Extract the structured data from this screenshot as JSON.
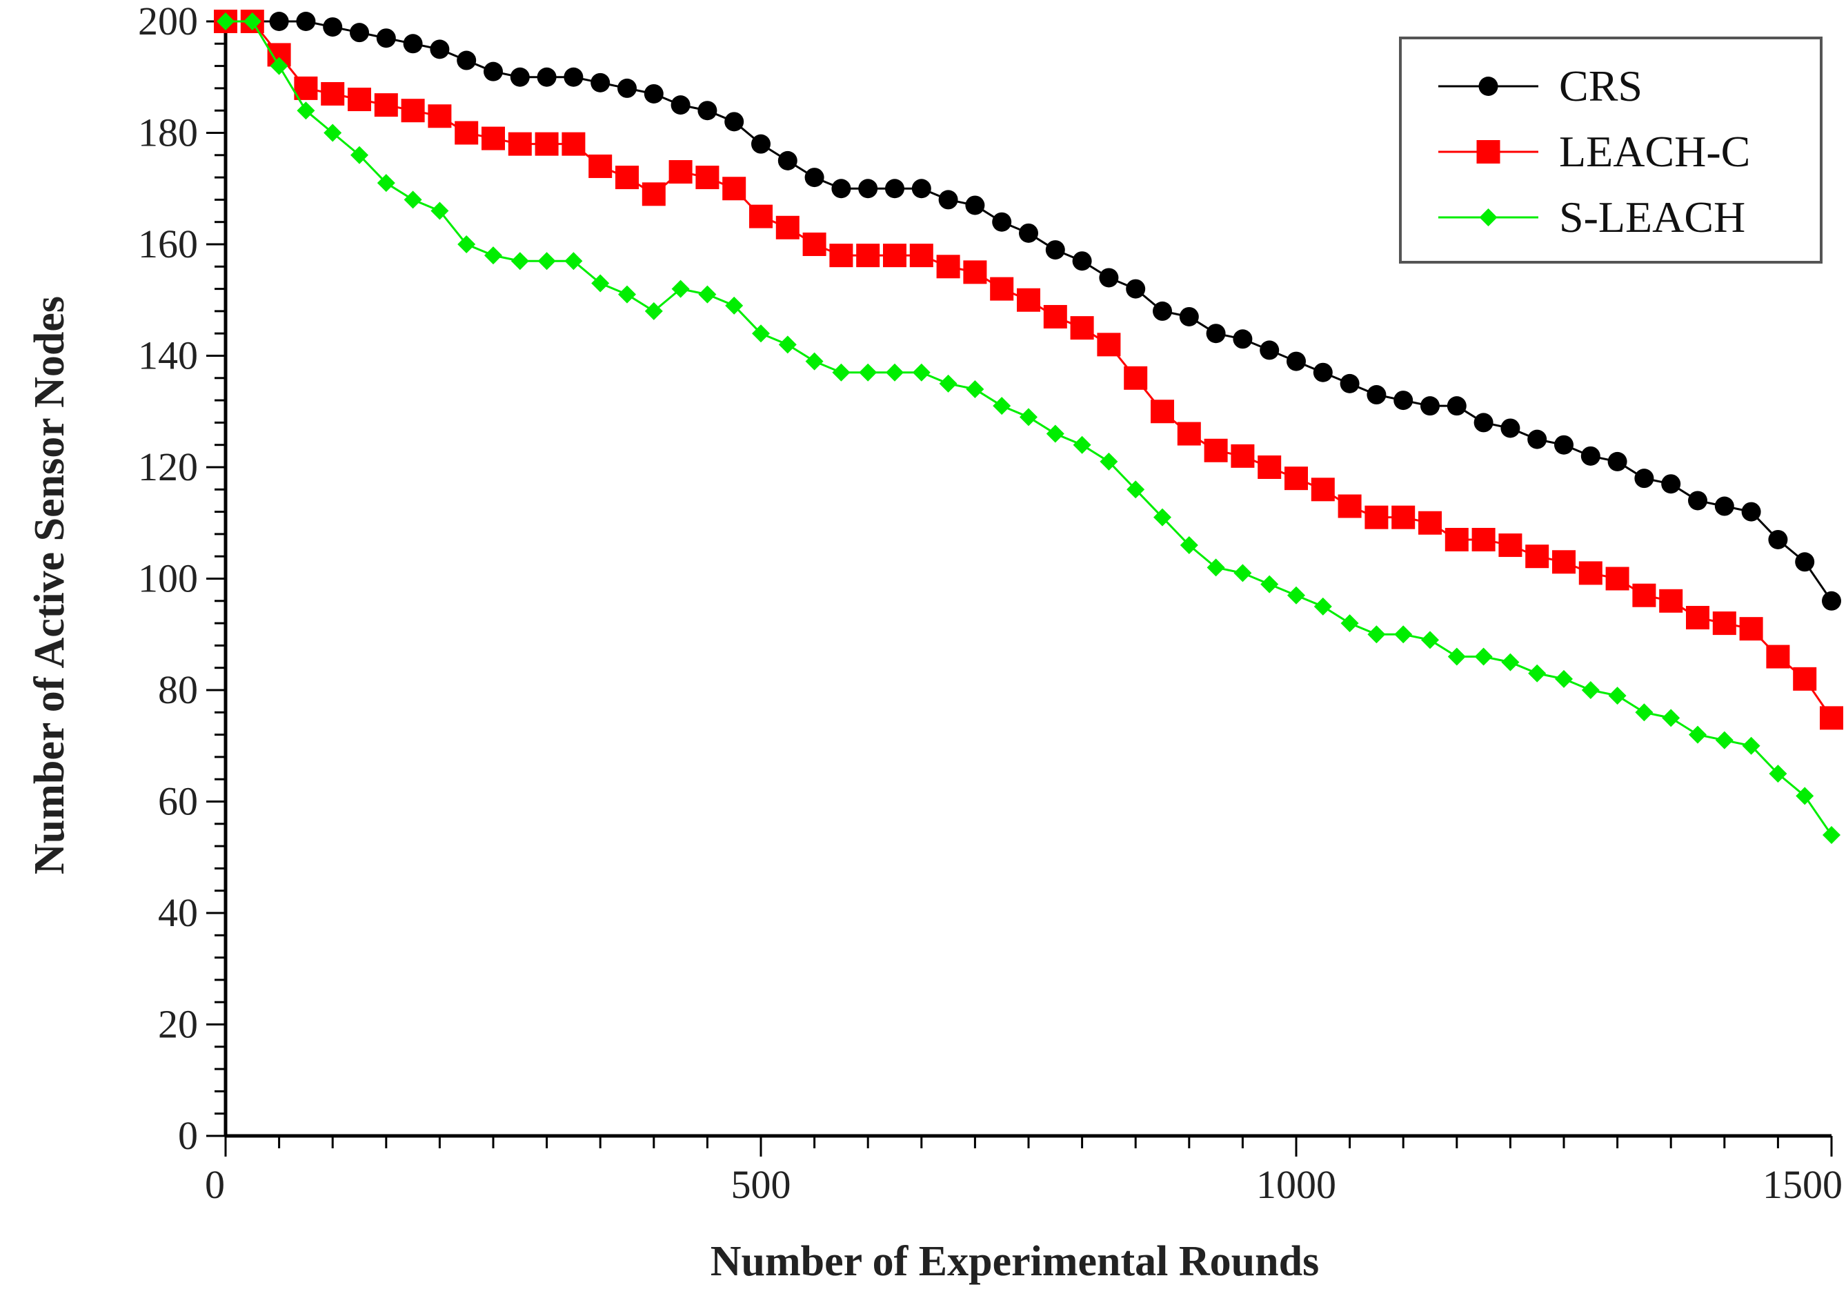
{
  "chart_data": {
    "type": "line",
    "title": "",
    "xlabel": "Number of Experimental Rounds",
    "ylabel": "Number of Active Sensor Nodes",
    "xlim": [
      0,
      1500
    ],
    "ylim": [
      0,
      200
    ],
    "xticks": [
      0,
      500,
      1000,
      1500
    ],
    "yticks": [
      0,
      20,
      40,
      60,
      80,
      100,
      120,
      140,
      160,
      180,
      200
    ],
    "grid": false,
    "legend_position": "top-right",
    "x": [
      0,
      25,
      50,
      75,
      100,
      125,
      150,
      175,
      200,
      225,
      250,
      275,
      300,
      325,
      350,
      375,
      400,
      425,
      450,
      475,
      500,
      525,
      550,
      575,
      600,
      625,
      650,
      675,
      700,
      725,
      750,
      775,
      800,
      825,
      850,
      875,
      900,
      925,
      950,
      975,
      1000,
      1025,
      1050,
      1075,
      1100,
      1125,
      1150,
      1175,
      1200,
      1225,
      1250,
      1275,
      1300,
      1325,
      1350,
      1375,
      1400,
      1425,
      1450,
      1475,
      1500
    ],
    "series": [
      {
        "name": "CRS",
        "color": "#000000",
        "marker": "circle",
        "values": [
          200,
          200,
          200,
          200,
          199,
          198,
          197,
          196,
          195,
          193,
          191,
          190,
          190,
          190,
          189,
          188,
          187,
          185,
          184,
          182,
          178,
          175,
          172,
          170,
          170,
          170,
          170,
          168,
          167,
          164,
          162,
          159,
          157,
          154,
          152,
          148,
          147,
          144,
          143,
          141,
          139,
          137,
          135,
          133,
          132,
          131,
          131,
          128,
          127,
          125,
          124,
          122,
          121,
          118,
          117,
          114,
          113,
          112,
          107,
          103,
          96
        ]
      },
      {
        "name": "LEACH-C",
        "color": "#ff0000",
        "marker": "square",
        "values": [
          200,
          200,
          194,
          188,
          187,
          186,
          185,
          184,
          183,
          180,
          179,
          178,
          178,
          178,
          174,
          172,
          169,
          173,
          172,
          170,
          165,
          163,
          160,
          158,
          158,
          158,
          158,
          156,
          155,
          152,
          150,
          147,
          145,
          142,
          136,
          130,
          126,
          123,
          122,
          120,
          118,
          116,
          113,
          111,
          111,
          110,
          107,
          107,
          106,
          104,
          103,
          101,
          100,
          97,
          96,
          93,
          92,
          91,
          86,
          82,
          75
        ]
      },
      {
        "name": "S-LEACH",
        "color": "#00ee00",
        "marker": "diamond",
        "values": [
          200,
          200,
          192,
          184,
          180,
          176,
          171,
          168,
          166,
          160,
          158,
          157,
          157,
          157,
          153,
          151,
          148,
          152,
          151,
          149,
          144,
          142,
          139,
          137,
          137,
          137,
          137,
          135,
          134,
          131,
          129,
          126,
          124,
          121,
          116,
          111,
          106,
          102,
          101,
          99,
          97,
          95,
          92,
          90,
          90,
          89,
          86,
          86,
          85,
          83,
          82,
          80,
          79,
          76,
          75,
          72,
          71,
          70,
          65,
          61,
          54
        ]
      }
    ]
  }
}
